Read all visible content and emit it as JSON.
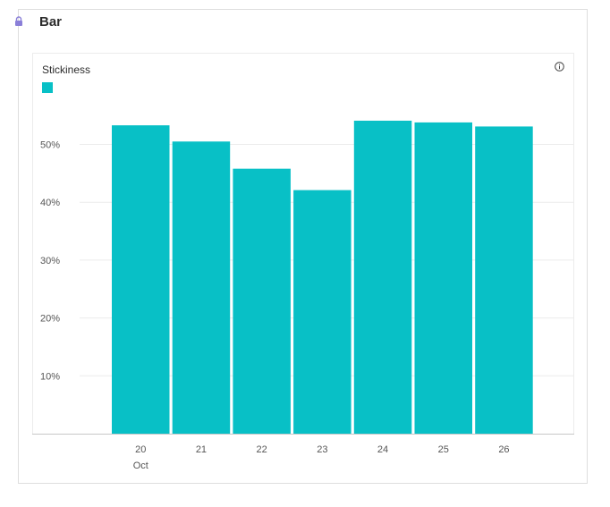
{
  "card": {
    "title": "Bar",
    "lock_icon": "lock-icon",
    "info_icon": "info-icon"
  },
  "colors": {
    "bar": "#08c0c6",
    "grid": "#ececec",
    "axis_text": "#555555",
    "lock": "#8a7fd8"
  },
  "chart_data": {
    "type": "bar",
    "title": "Stickiness",
    "legend": [
      {
        "name": "",
        "color": "#08c0c6"
      }
    ],
    "categories": [
      "20",
      "21",
      "22",
      "23",
      "24",
      "25",
      "26"
    ],
    "x_sublabel": "Oct",
    "values": [
      53.3,
      50.5,
      45.8,
      42.1,
      54.1,
      53.8,
      53.1
    ],
    "ylim": [
      0,
      60
    ],
    "yticks": [
      10,
      20,
      30,
      40,
      50
    ],
    "ytick_labels": [
      "10%",
      "20%",
      "30%",
      "40%",
      "50%"
    ],
    "xlabel": "",
    "ylabel": "",
    "grid": true
  }
}
